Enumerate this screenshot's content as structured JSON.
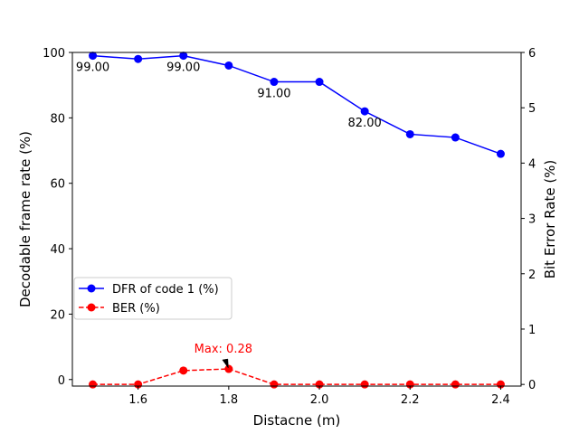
{
  "chart_data": {
    "type": "line",
    "title": "",
    "xlabel": "Distacne (m)",
    "ylabel_left": "Decodable frame rate (%)",
    "ylabel_right": "Bit Error Rate (%)",
    "x": [
      1.5,
      1.6,
      1.7,
      1.8,
      1.9,
      2.0,
      2.1,
      2.2,
      2.3,
      2.4
    ],
    "xticks": [
      1.6,
      1.8,
      2.0,
      2.2,
      2.4
    ],
    "xtick_labels": [
      "1.6",
      "1.8",
      "2.0",
      "2.2",
      "2.4"
    ],
    "xlim": [
      1.455,
      2.445
    ],
    "ylim_left": [
      -2,
      100
    ],
    "yticks_left": [
      0,
      20,
      40,
      60,
      80,
      100
    ],
    "yticks_left_labels": [
      "0",
      "20",
      "40",
      "60",
      "80",
      "100"
    ],
    "ylim_right": [
      -0.03,
      6
    ],
    "yticks_right": [
      0,
      1,
      2,
      3,
      4,
      5,
      6
    ],
    "yticks_right_labels": [
      "0",
      "1",
      "2",
      "3",
      "4",
      "5",
      "6"
    ],
    "grid": false,
    "legend_position": "center-left",
    "series": [
      {
        "name": "DFR of code 1 (%)",
        "axis": "left",
        "color": "#0000ff",
        "linestyle": "solid",
        "marker": "circle",
        "values": [
          99,
          98,
          99,
          96,
          91,
          91,
          82,
          75,
          74,
          69
        ]
      },
      {
        "name": "BER (%)",
        "axis": "right",
        "color": "#ff0000",
        "linestyle": "dashed",
        "marker": "circle",
        "values": [
          0,
          0,
          0.25,
          0.28,
          0,
          0,
          0,
          0,
          0,
          0
        ]
      }
    ],
    "data_labels": [
      {
        "x": 1.5,
        "y": 99,
        "text": "99.00"
      },
      {
        "x": 1.7,
        "y": 99,
        "text": "99.00"
      },
      {
        "x": 1.9,
        "y": 91,
        "text": "91.00"
      },
      {
        "x": 2.1,
        "y": 82,
        "text": "82.00"
      }
    ],
    "annotation": {
      "x": 1.8,
      "y": 0.28,
      "text": "Max: 0.28",
      "color": "#ff0000"
    }
  }
}
